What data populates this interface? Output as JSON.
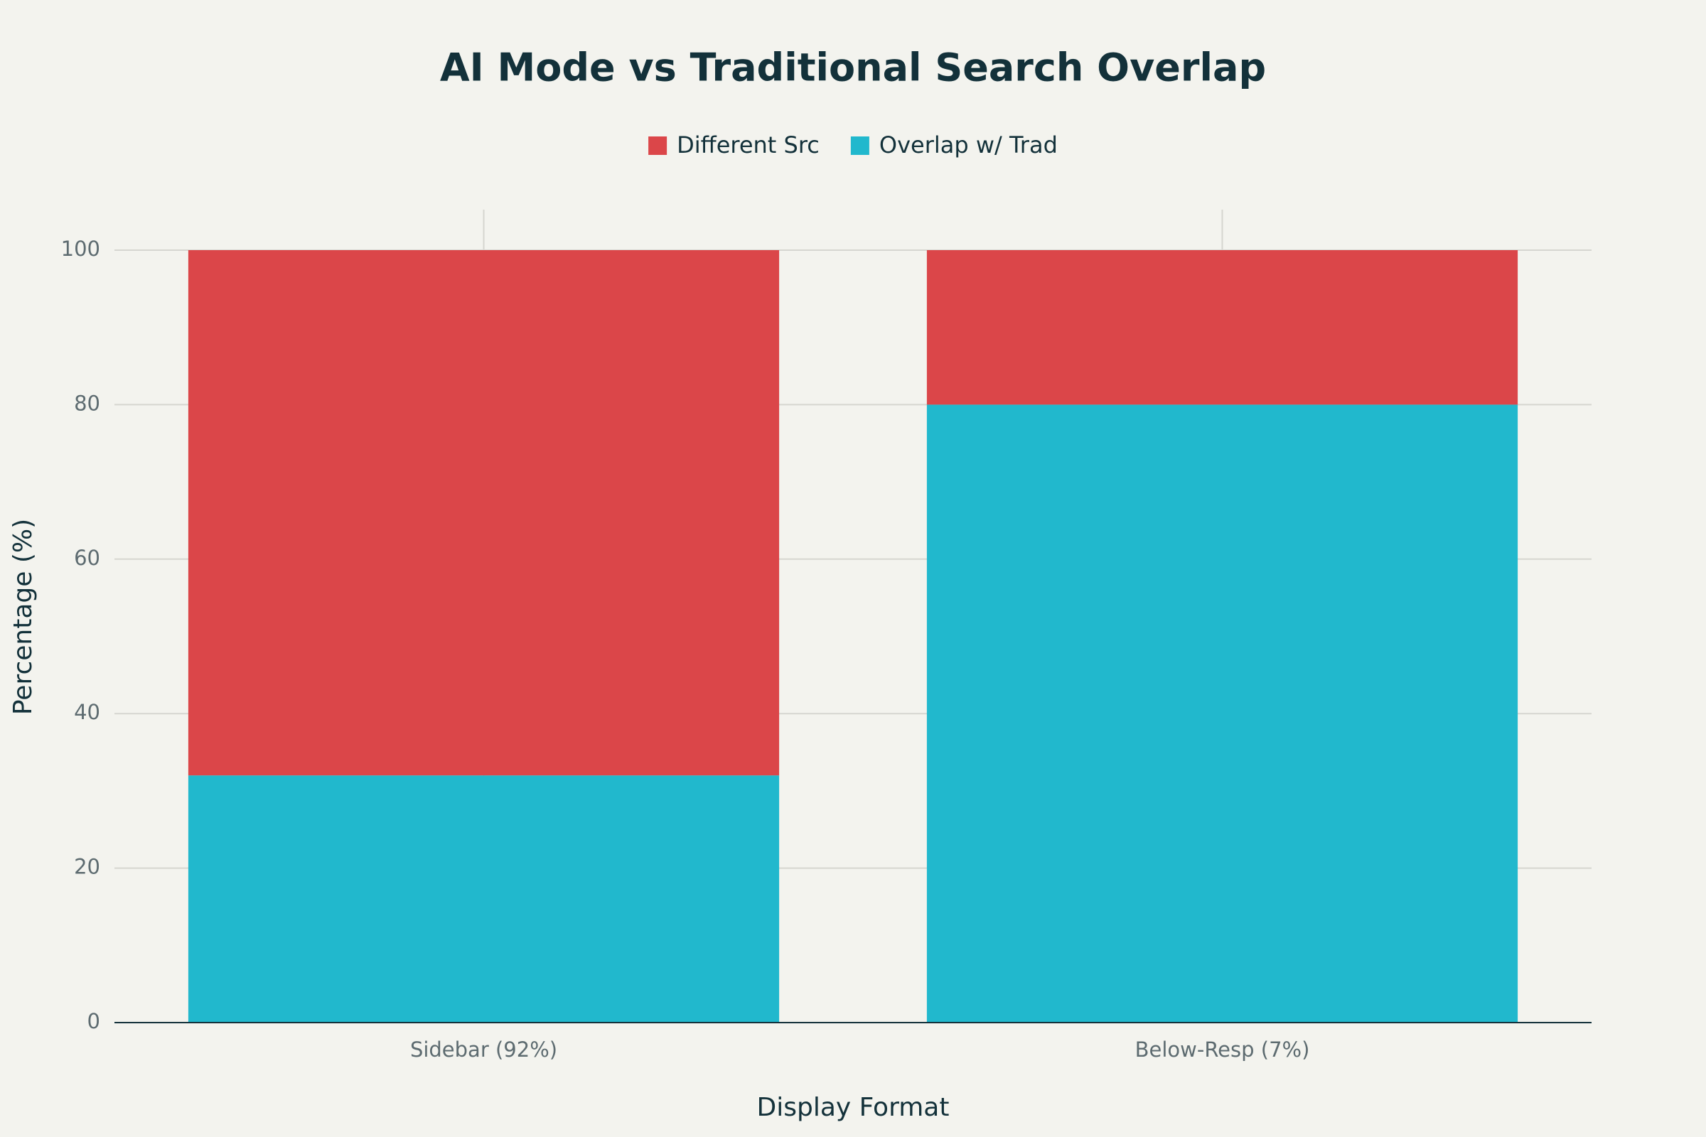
{
  "chart_data": {
    "type": "stacked_bar",
    "title": "AI Mode vs Traditional Search Overlap",
    "x_label": "Display Format",
    "y_label": "Percentage (%)",
    "categories": [
      "Sidebar (92%)",
      "Below-Resp (7%)"
    ],
    "series": [
      {
        "name": "Different Src",
        "color": "#db4649",
        "values": [
          68,
          20
        ]
      },
      {
        "name": "Overlap w/ Trad",
        "color": "#21b8cd",
        "values": [
          32,
          80
        ]
      }
    ],
    "ylim": [
      0,
      100
    ],
    "yticks": [
      0,
      20,
      40,
      60,
      80,
      100
    ],
    "grid": true,
    "legend": "top"
  }
}
